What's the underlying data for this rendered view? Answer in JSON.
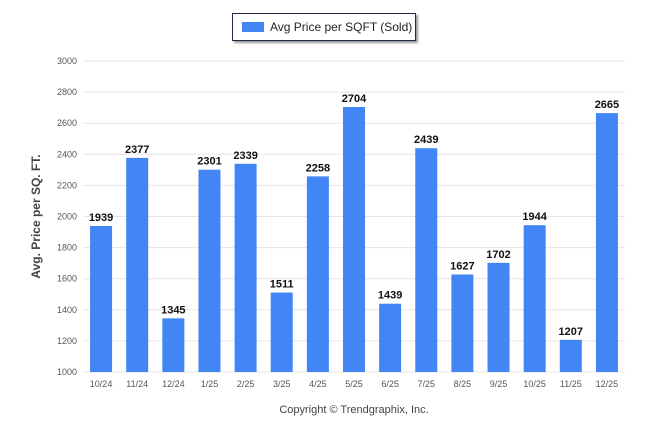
{
  "chart_data": {
    "type": "bar",
    "title": "",
    "legend": [
      "Avg Price per SQFT (Sold)"
    ],
    "legend_position": "top-center",
    "xlabel": "",
    "ylabel": "Avg. Price per SQ. FT.",
    "ylim": [
      1000,
      3000
    ],
    "yticks": [
      1000,
      1200,
      1400,
      1600,
      1800,
      2000,
      2200,
      2400,
      2600,
      2800,
      3000
    ],
    "grid": true,
    "categories": [
      "10/24",
      "11/24",
      "12/24",
      "1/25",
      "2/25",
      "3/25",
      "4/25",
      "5/25",
      "6/25",
      "7/25",
      "8/25",
      "9/25",
      "10/25",
      "11/25",
      "12/25"
    ],
    "values": [
      1939,
      2377,
      1345,
      2301,
      2339,
      1511,
      2258,
      2704,
      1439,
      2439,
      1627,
      1702,
      1944,
      1207,
      2665
    ],
    "bar_color": "#4285f4"
  },
  "footer": "Copyright © Trendgraphix, Inc."
}
